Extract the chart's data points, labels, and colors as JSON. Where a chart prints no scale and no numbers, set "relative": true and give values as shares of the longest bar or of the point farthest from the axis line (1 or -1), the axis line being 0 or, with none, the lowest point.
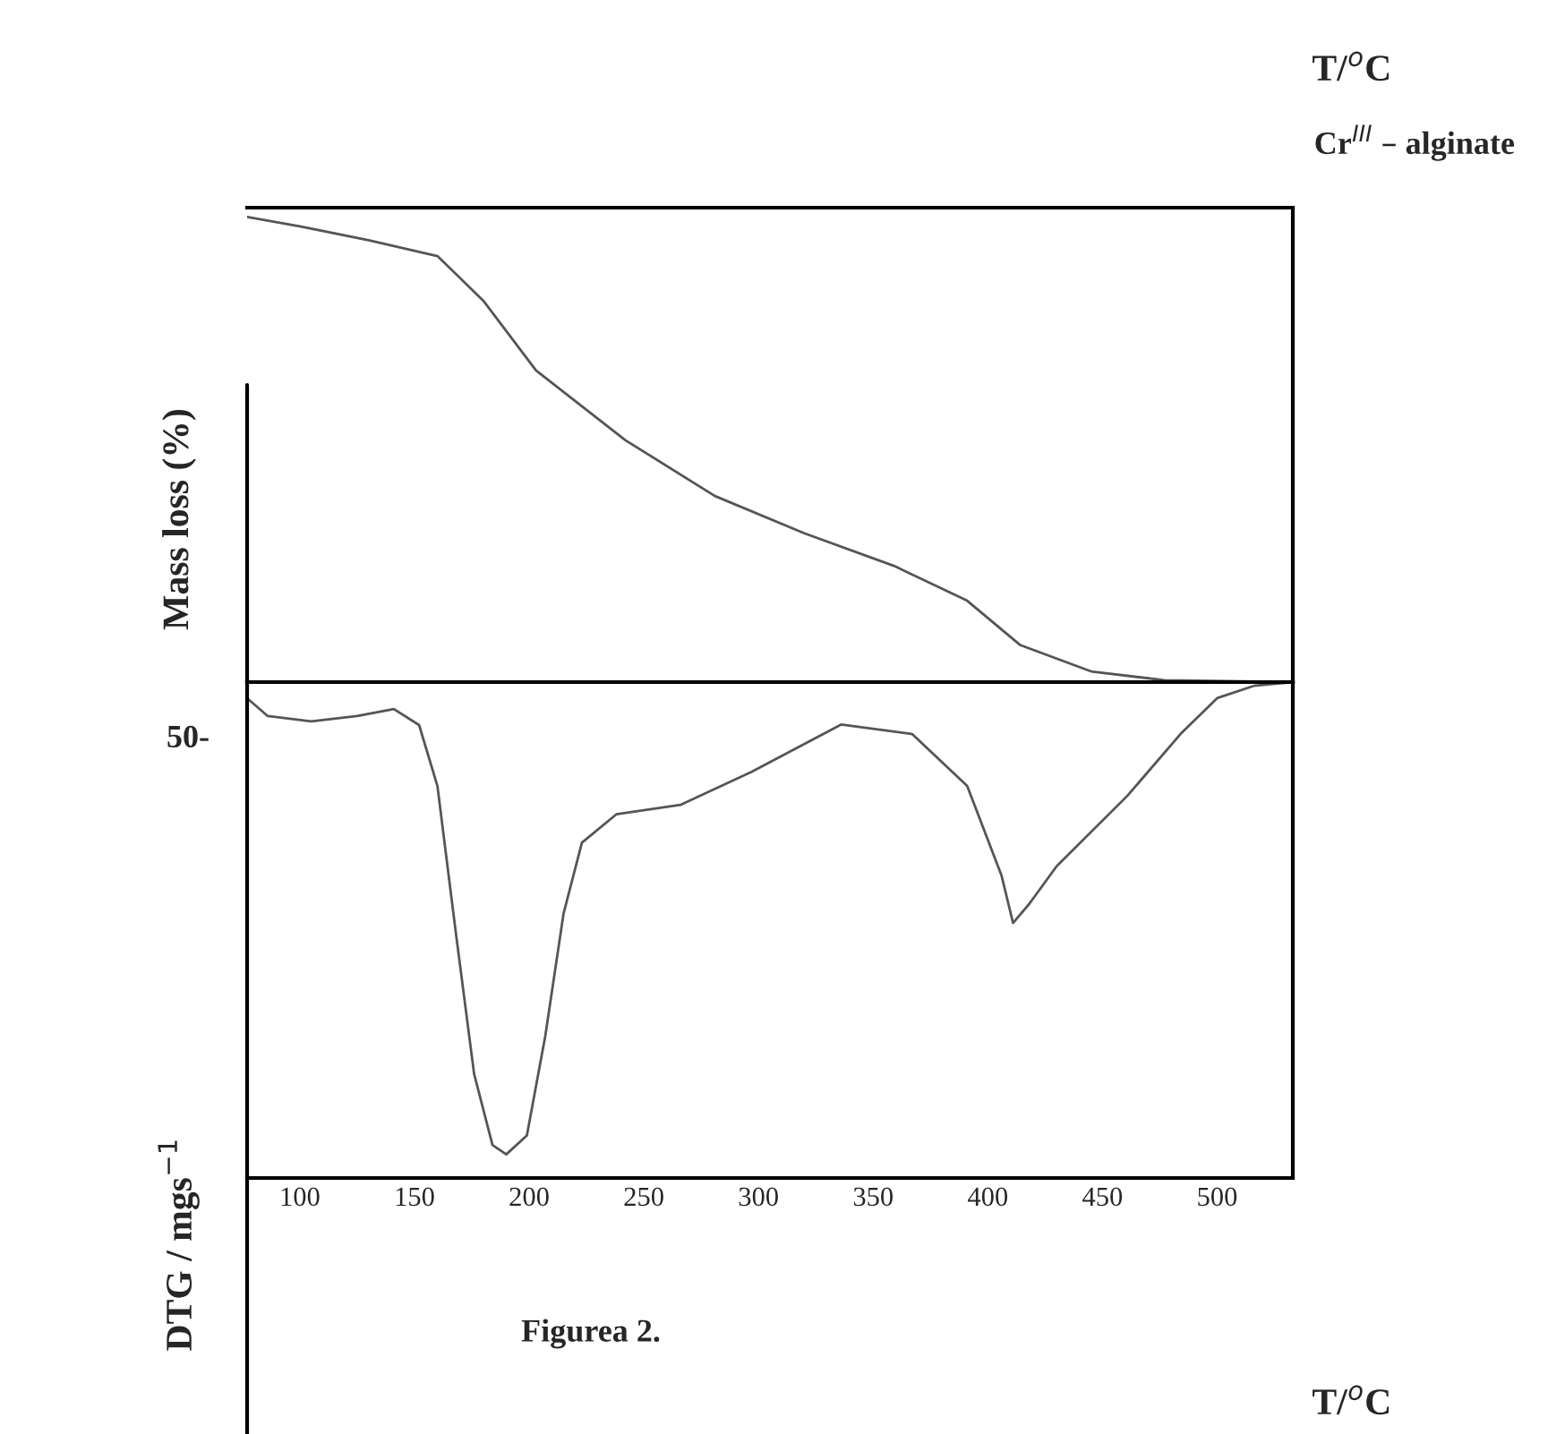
{
  "chart_data": [
    {
      "type": "line",
      "relative": true,
      "xlim": [
        77,
        533
      ],
      "tick_labels": false,
      "grid": false,
      "legend": false,
      "marker": "none",
      "line_style": "solid",
      "ylabel": "Mass loss (%)",
      "annotations": [
        "T/$^{o}$C",
        "Cr$^{III}$ – alginate",
        "50-"
      ],
      "series": [
        {
          "color": "#555555",
          "x": [
            77,
            100,
            130,
            160,
            180,
            203,
            242,
            281,
            320,
            359,
            391,
            414,
            445,
            477,
            531
          ],
          "values": [
            1.0,
            0.98,
            0.95,
            0.916,
            0.82,
            0.67,
            0.52,
            0.4,
            0.32,
            0.25,
            0.175,
            0.08,
            0.023,
            0.004,
            0.0
          ]
        }
      ]
    },
    {
      "type": "line",
      "relative": true,
      "xlim": [
        77,
        533
      ],
      "xticks": [
        100,
        150,
        200,
        250,
        300,
        350,
        400,
        450,
        500
      ],
      "tick_labels": "x",
      "grid": false,
      "legend": false,
      "marker": "none",
      "line_style": "solid",
      "ylabel": "DTG / mgs$^{−1}$",
      "xlabel": "T/$^{o}$C",
      "annotations": [
        "Figurea 2."
      ],
      "series": [
        {
          "color": "#555555",
          "x": [
            77,
            86,
            105,
            125,
            141,
            152,
            160,
            168,
            176,
            184,
            190,
            199,
            207,
            215,
            223,
            238,
            266,
            297,
            336,
            367,
            391,
            406,
            411,
            418,
            430,
            461,
            484,
            500,
            516,
            533
          ],
          "values": [
            -0.034,
            -0.072,
            -0.083,
            -0.072,
            -0.057,
            -0.091,
            -0.22,
            -0.53,
            -0.83,
            -0.98,
            -1.0,
            -0.96,
            -0.75,
            -0.49,
            -0.34,
            -0.28,
            -0.26,
            -0.19,
            -0.09,
            -0.11,
            -0.22,
            -0.41,
            -0.51,
            -0.47,
            -0.39,
            -0.24,
            -0.11,
            -0.034,
            -0.008,
            0.0
          ]
        }
      ]
    }
  ]
}
